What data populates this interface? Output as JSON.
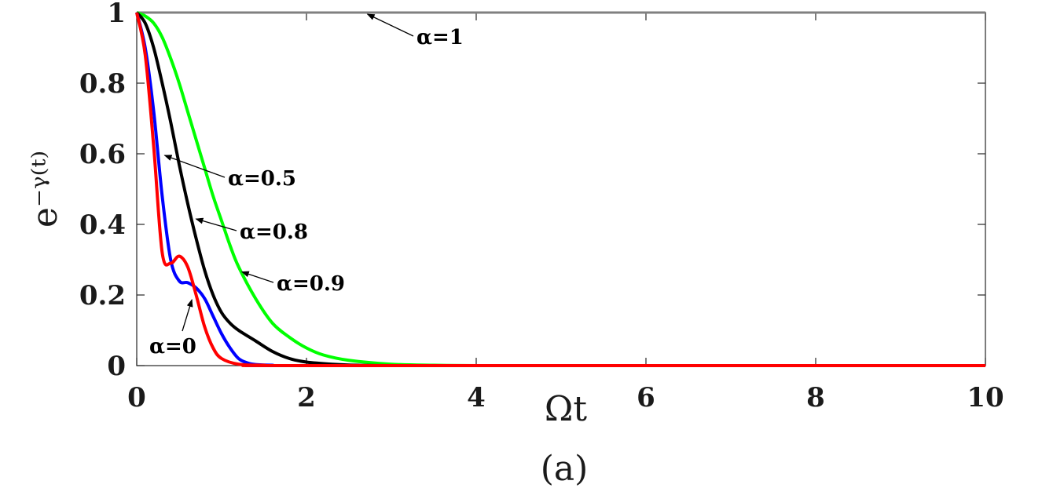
{
  "chart_data": {
    "type": "line",
    "xlabel": "Ωt",
    "ylabel": "e⁻ᵞ⁽ᵗ⁾",
    "caption": "(a)",
    "xlim": [
      0,
      10
    ],
    "ylim": [
      0,
      1
    ],
    "xticks": [
      "0",
      "2",
      "4",
      "6",
      "8",
      "10"
    ],
    "yticks": [
      "0",
      "0.2",
      "0.4",
      "0.6",
      "0.8",
      "1"
    ],
    "grid": false,
    "series": [
      {
        "name": "α=1",
        "color": "#808080",
        "x": [
          0,
          10
        ],
        "y": [
          1,
          1
        ]
      },
      {
        "name": "α=0.9",
        "color": "#00ff00",
        "x": [
          0,
          0.1,
          0.2,
          0.3,
          0.4,
          0.5,
          0.6,
          0.7,
          0.8,
          0.9,
          1.0,
          1.1,
          1.2,
          1.4,
          1.6,
          1.8,
          2.0,
          2.2,
          2.5,
          3.0,
          3.5,
          4.0,
          5.0,
          10.0
        ],
        "y": [
          1,
          0.99,
          0.97,
          0.93,
          0.87,
          0.8,
          0.72,
          0.64,
          0.56,
          0.48,
          0.41,
          0.34,
          0.28,
          0.19,
          0.12,
          0.08,
          0.05,
          0.03,
          0.015,
          0.004,
          0.001,
          0,
          0,
          0
        ]
      },
      {
        "name": "α=0.8",
        "color": "#000000",
        "x": [
          0,
          0.1,
          0.2,
          0.3,
          0.4,
          0.5,
          0.6,
          0.7,
          0.8,
          0.9,
          1.0,
          1.1,
          1.2,
          1.4,
          1.6,
          1.8,
          2.0,
          2.3,
          2.6,
          3.0,
          4.0,
          10.0
        ],
        "y": [
          1,
          0.97,
          0.9,
          0.8,
          0.69,
          0.57,
          0.46,
          0.36,
          0.27,
          0.2,
          0.15,
          0.12,
          0.1,
          0.07,
          0.04,
          0.02,
          0.01,
          0.004,
          0.001,
          0,
          0,
          0
        ]
      },
      {
        "name": "α=0.5",
        "color": "#0000ff",
        "x": [
          0,
          0.1,
          0.2,
          0.3,
          0.4,
          0.5,
          0.6,
          0.7,
          0.8,
          0.9,
          1.0,
          1.1,
          1.2,
          1.3,
          1.4,
          1.6,
          2.0,
          10.0
        ],
        "y": [
          1,
          0.9,
          0.72,
          0.48,
          0.3,
          0.24,
          0.235,
          0.22,
          0.19,
          0.14,
          0.09,
          0.05,
          0.02,
          0.008,
          0.003,
          0.001,
          0,
          0
        ]
      },
      {
        "name": "α=0",
        "color": "#ff0000",
        "x": [
          0,
          0.1,
          0.2,
          0.3,
          0.4,
          0.5,
          0.6,
          0.7,
          0.8,
          0.9,
          1.0,
          1.2,
          1.5,
          2.0,
          10.0
        ],
        "y": [
          1,
          0.88,
          0.62,
          0.32,
          0.29,
          0.31,
          0.28,
          0.2,
          0.11,
          0.05,
          0.02,
          0.004,
          0.001,
          0,
          0
        ]
      }
    ],
    "annotations": [
      {
        "text": "α=1",
        "point": [
          2.7,
          1.0
        ]
      },
      {
        "text": "α=0.5",
        "point": [
          0.31,
          0.6
        ]
      },
      {
        "text": "α=0.8",
        "point": [
          0.68,
          0.42
        ]
      },
      {
        "text": "α=0.9",
        "point": [
          1.22,
          0.27
        ]
      },
      {
        "text": "α=0",
        "point": [
          0.65,
          0.2
        ]
      }
    ]
  }
}
